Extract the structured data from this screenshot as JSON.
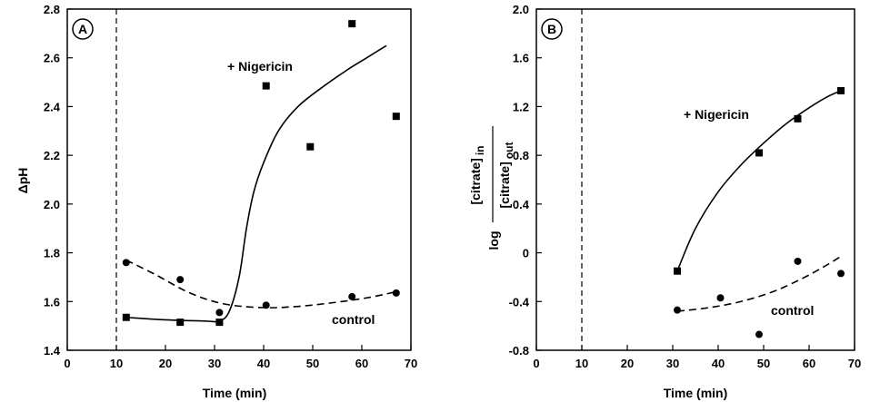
{
  "chart_data": [
    {
      "type": "scatter",
      "panel_label": "A",
      "xlabel": "Time (min)",
      "ylabel": "ΔpH",
      "xlim": [
        0,
        70
      ],
      "ylim": [
        1.4,
        2.8
      ],
      "x_ticks": [
        "0",
        "10",
        "20",
        "30",
        "40",
        "50",
        "60",
        "70"
      ],
      "y_ticks": [
        "1.4",
        "1.6",
        "1.8",
        "2.0",
        "2.2",
        "2.4",
        "2.6",
        "2.8"
      ],
      "vertical_dashed_line_x": 10,
      "series": [
        {
          "name": "+ Nigericin",
          "marker": "square",
          "line_style": "solid",
          "points": [
            [
              12,
              1.535
            ],
            [
              23,
              1.515
            ],
            [
              31,
              1.515
            ],
            [
              40.5,
              2.485
            ],
            [
              49.5,
              2.235
            ],
            [
              58,
              2.74
            ],
            [
              67,
              2.36
            ]
          ],
          "fit": [
            [
              12,
              1.535
            ],
            [
              20,
              1.525
            ],
            [
              28,
              1.52
            ],
            [
              31,
              1.52
            ],
            [
              33,
              1.56
            ],
            [
              35,
              1.7
            ],
            [
              36.5,
              1.9
            ],
            [
              38,
              2.05
            ],
            [
              40,
              2.17
            ],
            [
              43,
              2.3
            ],
            [
              47,
              2.4
            ],
            [
              52,
              2.48
            ],
            [
              57,
              2.55
            ],
            [
              61,
              2.6
            ],
            [
              65,
              2.65
            ]
          ]
        },
        {
          "name": "control",
          "marker": "circle",
          "line_style": "dashed",
          "points": [
            [
              12,
              1.76
            ],
            [
              23,
              1.69
            ],
            [
              31,
              1.555
            ],
            [
              40.5,
              1.585
            ],
            [
              58,
              1.62
            ],
            [
              67,
              1.635
            ]
          ],
          "fit": [
            [
              12,
              1.77
            ],
            [
              18,
              1.71
            ],
            [
              25,
              1.635
            ],
            [
              32,
              1.59
            ],
            [
              40,
              1.575
            ],
            [
              47,
              1.58
            ],
            [
              54,
              1.595
            ],
            [
              61,
              1.615
            ],
            [
              67,
              1.64
            ]
          ]
        }
      ]
    },
    {
      "type": "scatter",
      "panel_label": "B",
      "xlabel": "Time (min)",
      "ylabel": {
        "log": "log",
        "numerator": "[citrate]",
        "numerator_sub": "in",
        "denominator": "[citrate]",
        "denominator_sub": "out"
      },
      "xlim": [
        0,
        70
      ],
      "ylim": [
        -0.8,
        2.0
      ],
      "x_ticks": [
        "0",
        "10",
        "20",
        "30",
        "40",
        "50",
        "60",
        "70"
      ],
      "y_ticks": [
        "-0.8",
        "-0.4",
        "0",
        "0.4",
        "0.8",
        "1.2",
        "1.6",
        "2.0"
      ],
      "vertical_dashed_line_x": 10,
      "series": [
        {
          "name": "+ Nigericin",
          "marker": "square",
          "line_style": "solid",
          "points": [
            [
              31,
              -0.15
            ],
            [
              49,
              0.82
            ],
            [
              57.5,
              1.1
            ],
            [
              67,
              1.33
            ]
          ],
          "fit": [
            [
              31,
              -0.15
            ],
            [
              35,
              0.2
            ],
            [
              40,
              0.5
            ],
            [
              45,
              0.72
            ],
            [
              50,
              0.9
            ],
            [
              55,
              1.06
            ],
            [
              60,
              1.19
            ],
            [
              64,
              1.28
            ],
            [
              67,
              1.33
            ]
          ]
        },
        {
          "name": "control",
          "marker": "circle",
          "line_style": "dashed",
          "points": [
            [
              31,
              -0.47
            ],
            [
              40.5,
              -0.37
            ],
            [
              49,
              -0.67
            ],
            [
              57.5,
              -0.07
            ],
            [
              67,
              -0.17
            ]
          ],
          "fit": [
            [
              31,
              -0.48
            ],
            [
              38,
              -0.45
            ],
            [
              45,
              -0.4
            ],
            [
              52,
              -0.32
            ],
            [
              58,
              -0.22
            ],
            [
              63,
              -0.12
            ],
            [
              67,
              -0.03
            ]
          ]
        }
      ]
    }
  ]
}
